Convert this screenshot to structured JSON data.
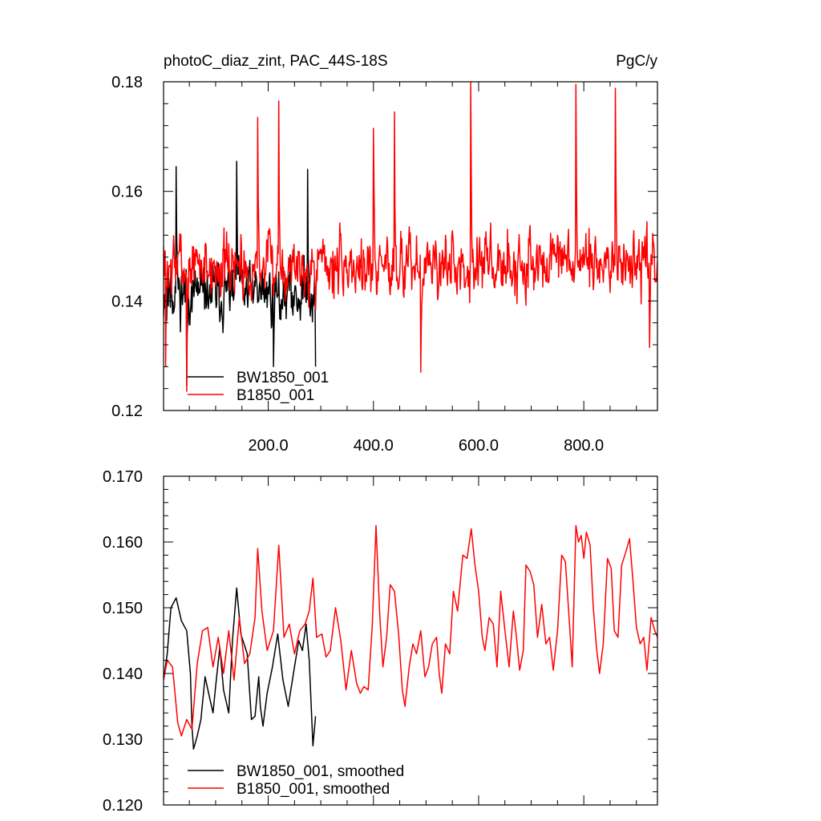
{
  "chart_data": [
    {
      "type": "line",
      "title": "photoC_diaz_zint, PAC_44S-18S",
      "units": "PgC/y",
      "xlim": [
        1,
        940
      ],
      "ylim": [
        0.12,
        0.18
      ],
      "xticks": [
        200,
        400,
        600,
        800
      ],
      "xtick_labels": [
        "200.0",
        "400.0",
        "600.0",
        "800.0"
      ],
      "yticks": [
        0.12,
        0.14,
        0.16,
        0.18
      ],
      "ytick_labels": [
        "0.12",
        "0.14",
        "0.16",
        "0.18"
      ],
      "legend_position": "bottom-left",
      "series": [
        {
          "name": "BW1850_001",
          "color": "#000000",
          "x_start": 1,
          "x_end": 290,
          "mean": 0.1415,
          "amp": 0.0085,
          "seed": 11,
          "peaks": [
            [
              15,
              0.1475
            ],
            [
              25,
              0.1645
            ],
            [
              45,
              0.1245
            ],
            [
              140,
              0.1655
            ],
            [
              210,
              0.128
            ],
            [
              275,
              0.164
            ],
            [
              290,
              0.128
            ]
          ]
        },
        {
          "name": "B1850_001",
          "color": "#ff0000",
          "x_start": 1,
          "x_end": 940,
          "mean": 0.1465,
          "amp": 0.0095,
          "seed": 7,
          "peaks": [
            [
              5,
              0.128
            ],
            [
              45,
              0.1235
            ],
            [
              180,
              0.1735
            ],
            [
              220,
              0.1765
            ],
            [
              400,
              0.1715
            ],
            [
              440,
              0.1745
            ],
            [
              490,
              0.127
            ],
            [
              585,
              0.18
            ],
            [
              785,
              0.1795
            ],
            [
              860,
              0.1788
            ],
            [
              925,
              0.1315
            ]
          ]
        }
      ]
    },
    {
      "type": "line",
      "title": "",
      "xlim": [
        1,
        940
      ],
      "ylim": [
        0.12,
        0.17
      ],
      "xticks": [
        200,
        400,
        600,
        800
      ],
      "xtick_labels": [],
      "yticks": [
        0.12,
        0.13,
        0.14,
        0.15,
        0.16,
        0.17
      ],
      "ytick_labels": [
        "0.120",
        "0.130",
        "0.140",
        "0.150",
        "0.160",
        "0.170"
      ],
      "legend_position": "bottom-left",
      "series": [
        {
          "name": "BW1850_001, smoothed",
          "color": "#000000",
          "x_start": 1,
          "x_end": 290,
          "points": [
            [
              1,
              0.139
            ],
            [
              8,
              0.143
            ],
            [
              15,
              0.15
            ],
            [
              25,
              0.1515
            ],
            [
              35,
              0.148
            ],
            [
              45,
              0.1465
            ],
            [
              52,
              0.14
            ],
            [
              55,
              0.132
            ],
            [
              58,
              0.1285
            ],
            [
              65,
              0.1305
            ],
            [
              72,
              0.133
            ],
            [
              80,
              0.1395
            ],
            [
              88,
              0.1365
            ],
            [
              95,
              0.134
            ],
            [
              100,
              0.138
            ],
            [
              108,
              0.144
            ],
            [
              115,
              0.1375
            ],
            [
              125,
              0.134
            ],
            [
              132,
              0.145
            ],
            [
              140,
              0.153
            ],
            [
              148,
              0.146
            ],
            [
              160,
              0.143
            ],
            [
              168,
              0.133
            ],
            [
              175,
              0.1335
            ],
            [
              182,
              0.1395
            ],
            [
              185,
              0.135
            ],
            [
              190,
              0.132
            ],
            [
              198,
              0.137
            ],
            [
              208,
              0.141
            ],
            [
              218,
              0.146
            ],
            [
              228,
              0.139
            ],
            [
              238,
              0.135
            ],
            [
              248,
              0.14
            ],
            [
              258,
              0.145
            ],
            [
              265,
              0.1435
            ],
            [
              272,
              0.1475
            ],
            [
              278,
              0.142
            ],
            [
              285,
              0.129
            ],
            [
              290,
              0.1335
            ]
          ]
        },
        {
          "name": "B1850_001, smoothed",
          "color": "#ff0000",
          "x_start": 1,
          "x_end": 940,
          "points": [
            [
              1,
              0.139
            ],
            [
              8,
              0.142
            ],
            [
              18,
              0.141
            ],
            [
              28,
              0.1325
            ],
            [
              35,
              0.1305
            ],
            [
              45,
              0.133
            ],
            [
              55,
              0.1315
            ],
            [
              65,
              0.1415
            ],
            [
              75,
              0.1465
            ],
            [
              85,
              0.147
            ],
            [
              95,
              0.141
            ],
            [
              105,
              0.1455
            ],
            [
              115,
              0.14
            ],
            [
              125,
              0.1465
            ],
            [
              135,
              0.139
            ],
            [
              145,
              0.1485
            ],
            [
              155,
              0.1415
            ],
            [
              165,
              0.143
            ],
            [
              175,
              0.1485
            ],
            [
              180,
              0.159
            ],
            [
              188,
              0.1495
            ],
            [
              198,
              0.1435
            ],
            [
              210,
              0.1465
            ],
            [
              220,
              0.1595
            ],
            [
              230,
              0.1455
            ],
            [
              240,
              0.1475
            ],
            [
              250,
              0.143
            ],
            [
              260,
              0.1465
            ],
            [
              270,
              0.1475
            ],
            [
              278,
              0.1495
            ],
            [
              285,
              0.1545
            ],
            [
              292,
              0.1455
            ],
            [
              302,
              0.146
            ],
            [
              310,
              0.1425
            ],
            [
              318,
              0.1435
            ],
            [
              328,
              0.15
            ],
            [
              338,
              0.145
            ],
            [
              348,
              0.1375
            ],
            [
              358,
              0.1435
            ],
            [
              368,
              0.1385
            ],
            [
              375,
              0.137
            ],
            [
              382,
              0.138
            ],
            [
              390,
              0.1375
            ],
            [
              398,
              0.1475
            ],
            [
              405,
              0.1625
            ],
            [
              412,
              0.149
            ],
            [
              418,
              0.141
            ],
            [
              425,
              0.1455
            ],
            [
              432,
              0.1535
            ],
            [
              440,
              0.1525
            ],
            [
              448,
              0.146
            ],
            [
              455,
              0.1375
            ],
            [
              460,
              0.135
            ],
            [
              468,
              0.141
            ],
            [
              475,
              0.1445
            ],
            [
              482,
              0.143
            ],
            [
              490,
              0.1465
            ],
            [
              498,
              0.1395
            ],
            [
              505,
              0.141
            ],
            [
              512,
              0.1445
            ],
            [
              520,
              0.1455
            ],
            [
              525,
              0.14
            ],
            [
              530,
              0.137
            ],
            [
              537,
              0.1445
            ],
            [
              545,
              0.143
            ],
            [
              552,
              0.1525
            ],
            [
              560,
              0.1495
            ],
            [
              570,
              0.158
            ],
            [
              578,
              0.1575
            ],
            [
              586,
              0.162
            ],
            [
              593,
              0.1565
            ],
            [
              600,
              0.1525
            ],
            [
              607,
              0.1455
            ],
            [
              612,
              0.1435
            ],
            [
              620,
              0.1485
            ],
            [
              628,
              0.1475
            ],
            [
              635,
              0.141
            ],
            [
              642,
              0.1525
            ],
            [
              650,
              0.1465
            ],
            [
              658,
              0.141
            ],
            [
              666,
              0.1495
            ],
            [
              672,
              0.1455
            ],
            [
              678,
              0.1405
            ],
            [
              685,
              0.1435
            ],
            [
              690,
              0.1565
            ],
            [
              698,
              0.1555
            ],
            [
              705,
              0.1535
            ],
            [
              712,
              0.1455
            ],
            [
              720,
              0.1505
            ],
            [
              728,
              0.1445
            ],
            [
              735,
              0.1455
            ],
            [
              742,
              0.1405
            ],
            [
              750,
              0.1465
            ],
            [
              758,
              0.158
            ],
            [
              765,
              0.157
            ],
            [
              772,
              0.1485
            ],
            [
              778,
              0.141
            ],
            [
              785,
              0.1625
            ],
            [
              790,
              0.16
            ],
            [
              795,
              0.161
            ],
            [
              800,
              0.1575
            ],
            [
              805,
              0.1615
            ],
            [
              812,
              0.1595
            ],
            [
              818,
              0.15
            ],
            [
              824,
              0.144
            ],
            [
              830,
              0.14
            ],
            [
              837,
              0.1445
            ],
            [
              845,
              0.1575
            ],
            [
              852,
              0.156
            ],
            [
              858,
              0.1465
            ],
            [
              865,
              0.1455
            ],
            [
              872,
              0.1565
            ],
            [
              880,
              0.1585
            ],
            [
              887,
              0.1605
            ],
            [
              893,
              0.1545
            ],
            [
              900,
              0.147
            ],
            [
              907,
              0.1445
            ],
            [
              914,
              0.1455
            ],
            [
              920,
              0.1405
            ],
            [
              928,
              0.1485
            ],
            [
              935,
              0.1465
            ],
            [
              940,
              0.1455
            ]
          ]
        }
      ]
    }
  ]
}
